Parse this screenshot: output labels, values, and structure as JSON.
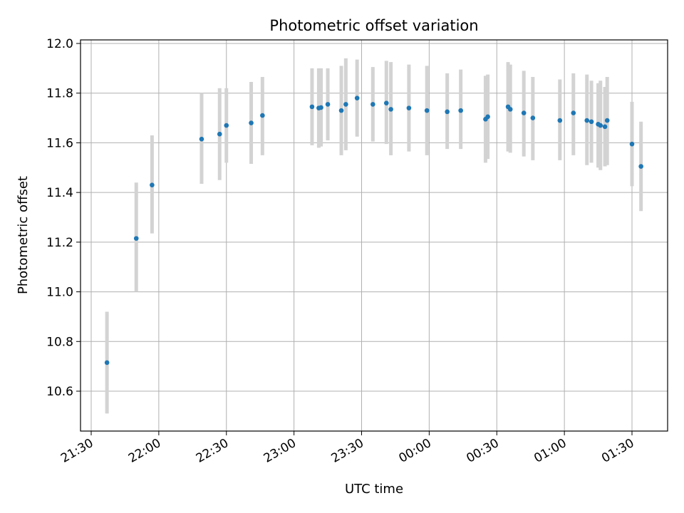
{
  "chart_data": {
    "type": "scatter",
    "title": "Photometric offset variation",
    "xlabel": "UTC time",
    "ylabel": "Photometric offset",
    "x_ticks": [
      "21:30",
      "22:00",
      "22:30",
      "23:00",
      "23:30",
      "00:00",
      "00:30",
      "01:00",
      "01:30"
    ],
    "y_ticks": [
      "10.6",
      "10.8",
      "11.0",
      "11.2",
      "11.4",
      "11.6",
      "11.8",
      "12.0"
    ],
    "ylim": [
      10.44,
      12.02
    ],
    "grid": true,
    "marker_color": "#1f77b4",
    "errorbar_color": "#d3d3d3",
    "points": [
      {
        "t": "21:37",
        "y": 10.715,
        "lo": 10.51,
        "hi": 10.92
      },
      {
        "t": "21:50",
        "y": 11.215,
        "lo": 11.0,
        "hi": 11.44
      },
      {
        "t": "21:57",
        "y": 11.43,
        "lo": 11.235,
        "hi": 11.63
      },
      {
        "t": "22:19",
        "y": 11.615,
        "lo": 11.435,
        "hi": 11.8
      },
      {
        "t": "22:27",
        "y": 11.635,
        "lo": 11.45,
        "hi": 11.82
      },
      {
        "t": "22:30",
        "y": 11.67,
        "lo": 11.52,
        "hi": 11.82
      },
      {
        "t": "22:41",
        "y": 11.68,
        "lo": 11.515,
        "hi": 11.845
      },
      {
        "t": "22:46",
        "y": 11.71,
        "lo": 11.55,
        "hi": 11.865
      },
      {
        "t": "23:08",
        "y": 11.745,
        "lo": 11.59,
        "hi": 11.9
      },
      {
        "t": "23:11",
        "y": 11.74,
        "lo": 11.58,
        "hi": 11.9
      },
      {
        "t": "23:12",
        "y": 11.742,
        "lo": 11.585,
        "hi": 11.9
      },
      {
        "t": "23:15",
        "y": 11.755,
        "lo": 11.61,
        "hi": 11.9
      },
      {
        "t": "23:21",
        "y": 11.73,
        "lo": 11.55,
        "hi": 11.91
      },
      {
        "t": "23:23",
        "y": 11.755,
        "lo": 11.57,
        "hi": 11.94
      },
      {
        "t": "23:28",
        "y": 11.78,
        "lo": 11.625,
        "hi": 11.935
      },
      {
        "t": "23:35",
        "y": 11.755,
        "lo": 11.605,
        "hi": 11.905
      },
      {
        "t": "23:41",
        "y": 11.76,
        "lo": 11.595,
        "hi": 11.93
      },
      {
        "t": "23:43",
        "y": 11.735,
        "lo": 11.55,
        "hi": 11.925
      },
      {
        "t": "23:51",
        "y": 11.74,
        "lo": 11.565,
        "hi": 11.915
      },
      {
        "t": "23:59",
        "y": 11.73,
        "lo": 11.55,
        "hi": 11.91
      },
      {
        "t": "00:08",
        "y": 11.725,
        "lo": 11.575,
        "hi": 11.88
      },
      {
        "t": "00:14",
        "y": 11.73,
        "lo": 11.575,
        "hi": 11.895
      },
      {
        "t": "00:25",
        "y": 11.695,
        "lo": 11.52,
        "hi": 11.87
      },
      {
        "t": "00:26",
        "y": 11.705,
        "lo": 11.535,
        "hi": 11.875
      },
      {
        "t": "00:35",
        "y": 11.745,
        "lo": 11.565,
        "hi": 11.925
      },
      {
        "t": "00:36",
        "y": 11.735,
        "lo": 11.56,
        "hi": 11.915
      },
      {
        "t": "00:42",
        "y": 11.72,
        "lo": 11.545,
        "hi": 11.89
      },
      {
        "t": "00:46",
        "y": 11.7,
        "lo": 11.53,
        "hi": 11.865
      },
      {
        "t": "00:58",
        "y": 11.69,
        "lo": 11.53,
        "hi": 11.855
      },
      {
        "t": "01:04",
        "y": 11.72,
        "lo": 11.55,
        "hi": 11.88
      },
      {
        "t": "01:10",
        "y": 11.69,
        "lo": 11.51,
        "hi": 11.875
      },
      {
        "t": "01:12",
        "y": 11.685,
        "lo": 11.52,
        "hi": 11.85
      },
      {
        "t": "01:15",
        "y": 11.675,
        "lo": 11.5,
        "hi": 11.84
      },
      {
        "t": "01:16",
        "y": 11.67,
        "lo": 11.49,
        "hi": 11.85
      },
      {
        "t": "01:18",
        "y": 11.665,
        "lo": 11.505,
        "hi": 11.825
      },
      {
        "t": "01:19",
        "y": 11.69,
        "lo": 11.51,
        "hi": 11.865
      },
      {
        "t": "01:30",
        "y": 11.595,
        "lo": 11.425,
        "hi": 11.765
      },
      {
        "t": "01:34",
        "y": 11.505,
        "lo": 11.325,
        "hi": 11.685
      }
    ]
  }
}
